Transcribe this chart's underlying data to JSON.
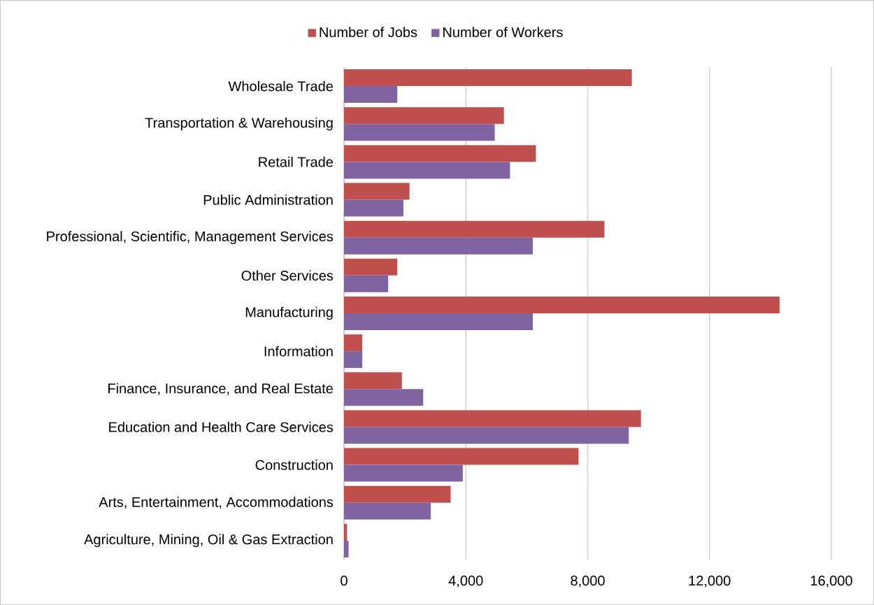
{
  "chart_data": {
    "type": "bar",
    "orientation": "horizontal",
    "categories": [
      "Wholesale Trade",
      "Transportation & Warehousing",
      "Retail Trade",
      "Public Administration",
      "Professional, Scientific, Management Services",
      "Other Services",
      "Manufacturing",
      "Information",
      "Finance, Insurance, and Real Estate",
      "Education and Health Care Services",
      "Construction",
      "Arts, Entertainment, Accommodations",
      "Agriculture, Mining, Oil & Gas Extraction"
    ],
    "series": [
      {
        "name": "Number of Jobs",
        "color": "#c0504d",
        "values": [
          9450,
          5250,
          6300,
          2150,
          8550,
          1750,
          14300,
          600,
          1900,
          9750,
          7700,
          3500,
          100
        ]
      },
      {
        "name": "Number of Workers",
        "color": "#8064a2",
        "values": [
          1750,
          4950,
          5450,
          1950,
          6200,
          1450,
          6200,
          600,
          2600,
          9350,
          3900,
          2850,
          150
        ]
      }
    ],
    "xlim": [
      0,
      16000
    ],
    "xticks": [
      0,
      {
        "value": 4000,
        "label": "4,000"
      },
      {
        "value": 8000,
        "label": "8,000"
      },
      {
        "value": 12000,
        "label": "12,000"
      },
      {
        "value": 16000,
        "label": "16,000"
      }
    ],
    "grid": "x",
    "legend": "top"
  }
}
